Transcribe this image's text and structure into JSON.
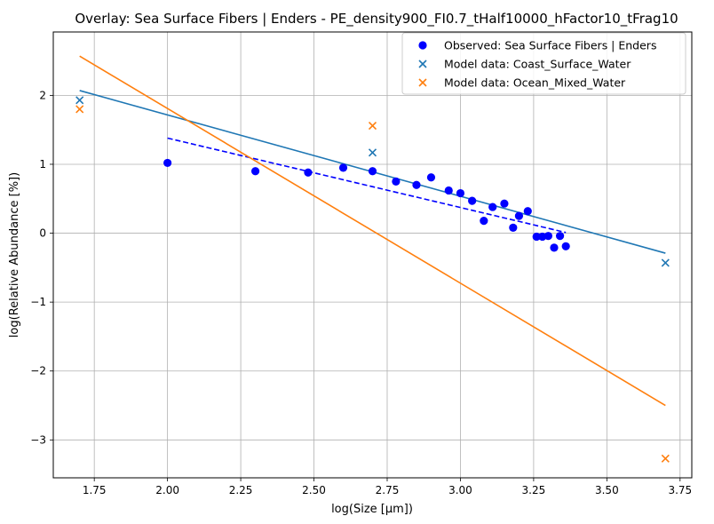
{
  "chart_data": {
    "type": "scatter",
    "title": "Overlay: Sea Surface Fibers | Enders - PE_density900_FI0.7_tHalf10000_hFactor10_tFrag10",
    "xlabel": "log(Size [μm])",
    "ylabel": "log(Relative Abundance [%])",
    "xlim": [
      1.61,
      3.79
    ],
    "ylim": [
      -3.55,
      2.92
    ],
    "xticks": [
      1.75,
      2.0,
      2.25,
      2.5,
      2.75,
      3.0,
      3.25,
      3.5,
      3.75
    ],
    "xtick_labels": [
      "1.75",
      "2.00",
      "2.25",
      "2.50",
      "2.75",
      "3.00",
      "3.25",
      "3.50",
      "3.75"
    ],
    "yticks": [
      -3,
      -2,
      -1,
      0,
      1,
      2
    ],
    "ytick_labels": [
      "−3",
      "−2",
      "−1",
      "0",
      "1",
      "2"
    ],
    "grid": true,
    "legend_position": "top-right",
    "series": [
      {
        "name": "Observed: Sea Surface Fibers | Enders",
        "kind": "scatter-dot",
        "color": "#0000ff",
        "points": [
          [
            2.0,
            1.02
          ],
          [
            2.3,
            0.9
          ],
          [
            2.48,
            0.88
          ],
          [
            2.6,
            0.95
          ],
          [
            2.7,
            0.9
          ],
          [
            2.78,
            0.75
          ],
          [
            2.85,
            0.7
          ],
          [
            2.9,
            0.81
          ],
          [
            2.96,
            0.62
          ],
          [
            3.0,
            0.58
          ],
          [
            3.04,
            0.47
          ],
          [
            3.08,
            0.18
          ],
          [
            3.11,
            0.38
          ],
          [
            3.15,
            0.43
          ],
          [
            3.18,
            0.08
          ],
          [
            3.2,
            0.25
          ],
          [
            3.23,
            0.32
          ],
          [
            3.26,
            -0.05
          ],
          [
            3.28,
            -0.05
          ],
          [
            3.3,
            -0.04
          ],
          [
            3.32,
            -0.21
          ],
          [
            3.34,
            -0.04
          ],
          [
            3.36,
            -0.19
          ]
        ]
      },
      {
        "name": "Model data: Coast_Surface_Water",
        "kind": "scatter-x",
        "color": "#1f77b4",
        "points": [
          [
            1.7,
            1.93
          ],
          [
            2.7,
            1.17
          ],
          [
            3.7,
            -0.43
          ]
        ]
      },
      {
        "name": "Model data: Ocean_Mixed_Water",
        "kind": "scatter-x",
        "color": "#ff7f0e",
        "points": [
          [
            1.7,
            1.8
          ],
          [
            2.7,
            1.56
          ],
          [
            3.7,
            -3.27
          ]
        ]
      }
    ],
    "fit_lines": [
      {
        "color": "#0000ff",
        "style": "dashed",
        "points": [
          [
            2.0,
            1.38
          ],
          [
            3.36,
            0.01
          ]
        ]
      },
      {
        "color": "#1f77b4",
        "style": "solid",
        "points": [
          [
            1.7,
            2.07
          ],
          [
            3.7,
            -0.29
          ]
        ]
      },
      {
        "color": "#ff7f0e",
        "style": "solid",
        "points": [
          [
            1.7,
            2.57
          ],
          [
            3.7,
            -2.5
          ]
        ]
      }
    ]
  }
}
